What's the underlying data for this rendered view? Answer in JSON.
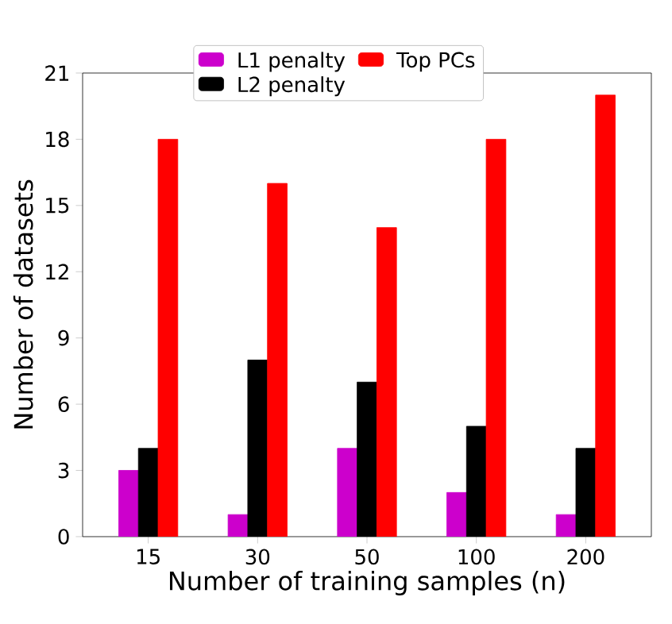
{
  "chart_data": {
    "type": "bar",
    "xlabel": "Number of training samples (n)",
    "ylabel": "Number of datasets",
    "categories": [
      "15",
      "30",
      "50",
      "100",
      "200"
    ],
    "series": [
      {
        "name": "L1 penalty",
        "color": "#cc00cc",
        "values": [
          3,
          1,
          4,
          2,
          1
        ]
      },
      {
        "name": "L2 penalty",
        "color": "#000000",
        "values": [
          4,
          8,
          7,
          5,
          4
        ]
      },
      {
        "name": "Top PCs",
        "color": "#ff0000",
        "values": [
          18,
          16,
          14,
          18,
          20
        ]
      }
    ],
    "ylim": [
      0,
      21
    ],
    "yticks": [
      0,
      3,
      6,
      9,
      12,
      15,
      18,
      21
    ],
    "grid": false,
    "legend": "top"
  }
}
